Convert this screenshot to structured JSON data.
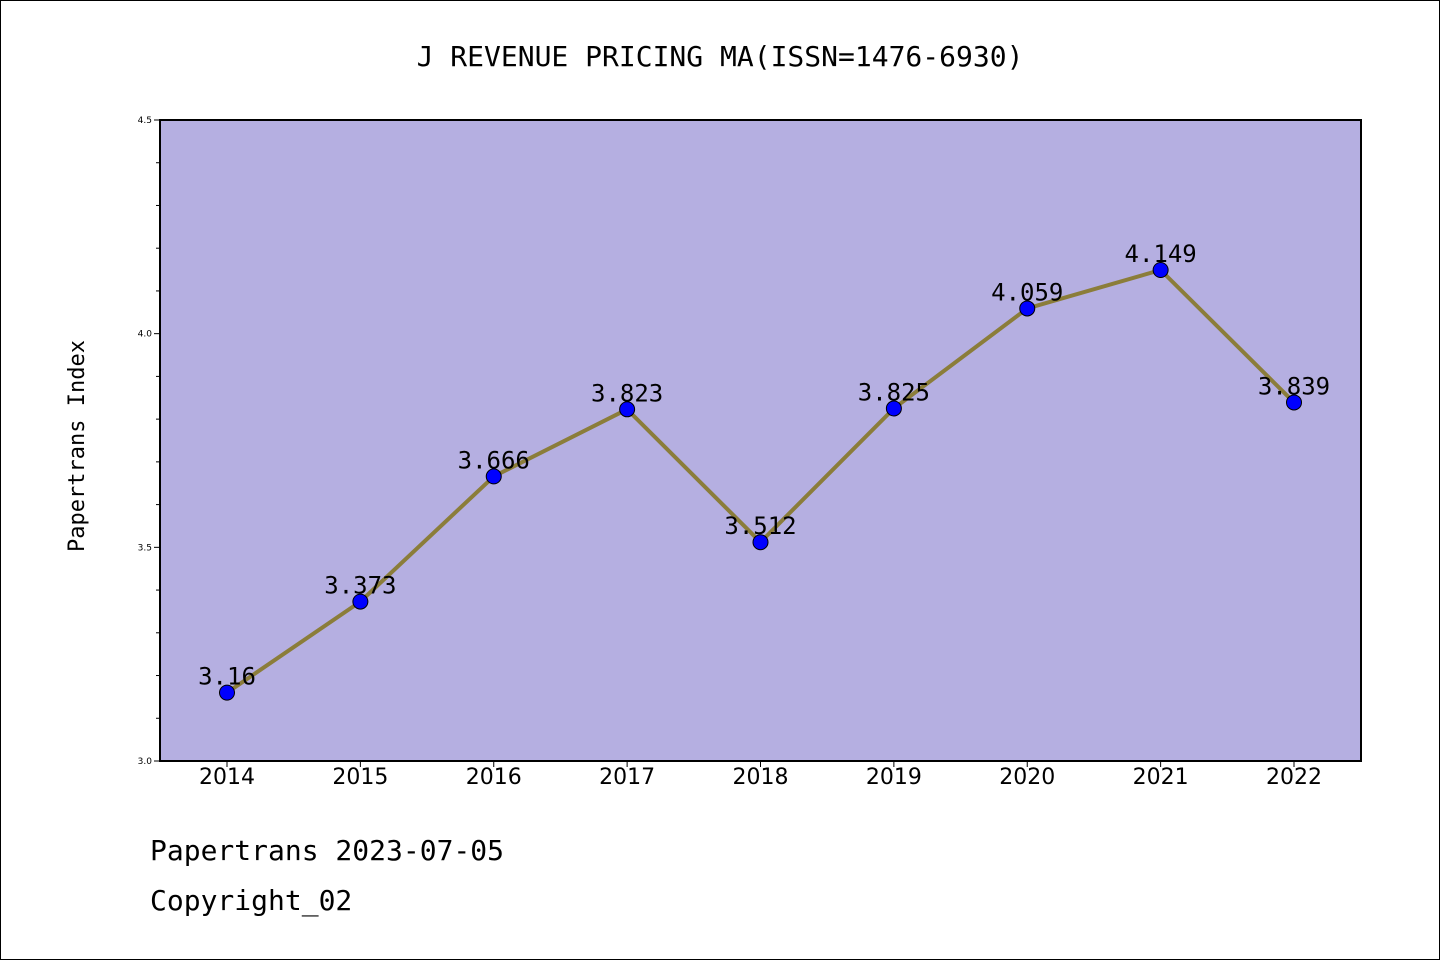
{
  "chart_data": {
    "type": "line",
    "title": "J REVENUE PRICING MA(ISSN=1476-6930)",
    "xlabel": "",
    "ylabel": "Papertrans Index",
    "categories": [
      "2014",
      "2015",
      "2016",
      "2017",
      "2018",
      "2019",
      "2020",
      "2021",
      "2022"
    ],
    "series": [
      {
        "values": [
          3.16,
          3.373,
          3.666,
          3.823,
          3.512,
          3.825,
          4.059,
          4.149,
          3.839
        ],
        "labels": [
          "3.16",
          "3.373",
          "3.666",
          "3.823",
          "3.512",
          "3.825",
          "4.059",
          "4.149",
          "3.839"
        ]
      }
    ],
    "ylim": [
      3.0,
      4.5
    ],
    "yticks": [
      "3.0",
      "3.5",
      "4.0",
      "4.5"
    ],
    "grid": false,
    "colors": {
      "plot_background": "#b5afe1",
      "line": "#8b7d3a",
      "marker": "#0000ff"
    }
  },
  "footer": {
    "line1": "Papertrans 2023-07-05",
    "line2": "Copyright_02"
  }
}
